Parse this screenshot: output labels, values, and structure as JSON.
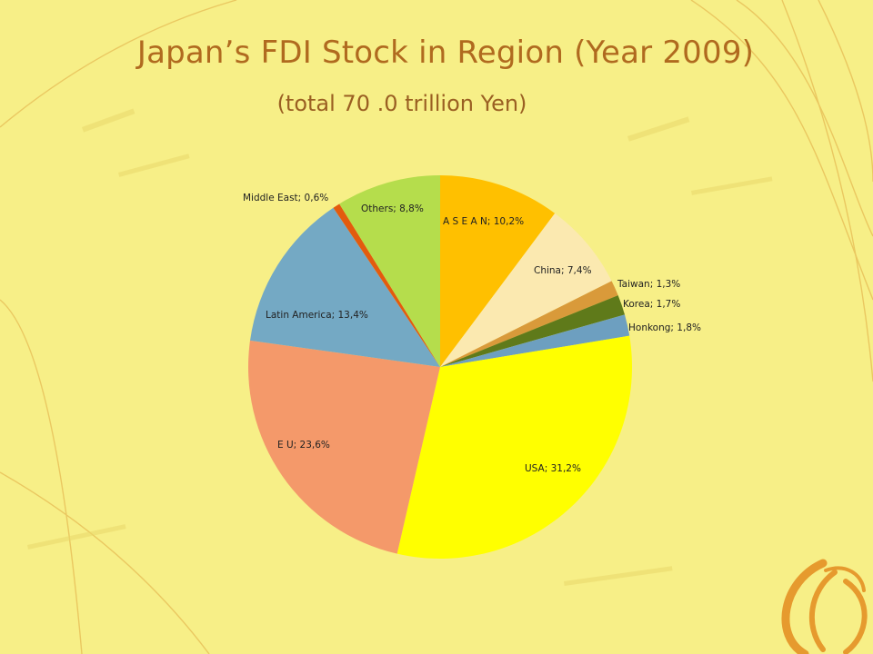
{
  "slide": {
    "title": "Japan’s FDI Stock in Region (Year 2009)",
    "subtitle": "(total 70 .0 trillion Yen)",
    "background": "#f7ef87",
    "title_color": "#b06a1f"
  },
  "chart_data": {
    "type": "pie",
    "title": "Japan’s FDI Stock in Region (Year 2009)",
    "subtitle": "(total 70 .0 trillion Yen)",
    "start": "12 o'clock, clockwise",
    "slices": [
      {
        "name": "A S E A N",
        "value": 10.2,
        "label": "A S E A N; 10,2%",
        "color": "#ffc000"
      },
      {
        "name": "China",
        "value": 7.4,
        "label": "China; 7,4%",
        "color": "#fbe9b0"
      },
      {
        "name": "Taiwan",
        "value": 1.3,
        "label": "Taiwan; 1,3%",
        "color": "#d99a3a"
      },
      {
        "name": "Korea",
        "value": 1.7,
        "label": "Korea; 1,7%",
        "color": "#5f7a1a"
      },
      {
        "name": "Honkong",
        "value": 1.8,
        "label": "Honkong; 1,8%",
        "color": "#6d9fc0"
      },
      {
        "name": "USA",
        "value": 31.2,
        "label": "USA; 31,2%",
        "color": "#ffff00"
      },
      {
        "name": "E U",
        "value": 23.6,
        "label": "E U; 23,6%",
        "color": "#f4996a"
      },
      {
        "name": "Latin America",
        "value": 13.4,
        "label": "Latin America; 13,4%",
        "color": "#74a9c4"
      },
      {
        "name": "Middle East",
        "value": 0.6,
        "label": "Middle East; 0,6%",
        "color": "#e35b0e"
      },
      {
        "name": "Others",
        "value": 8.8,
        "label": "Others; 8,8%",
        "color": "#b5dd4c"
      }
    ]
  }
}
